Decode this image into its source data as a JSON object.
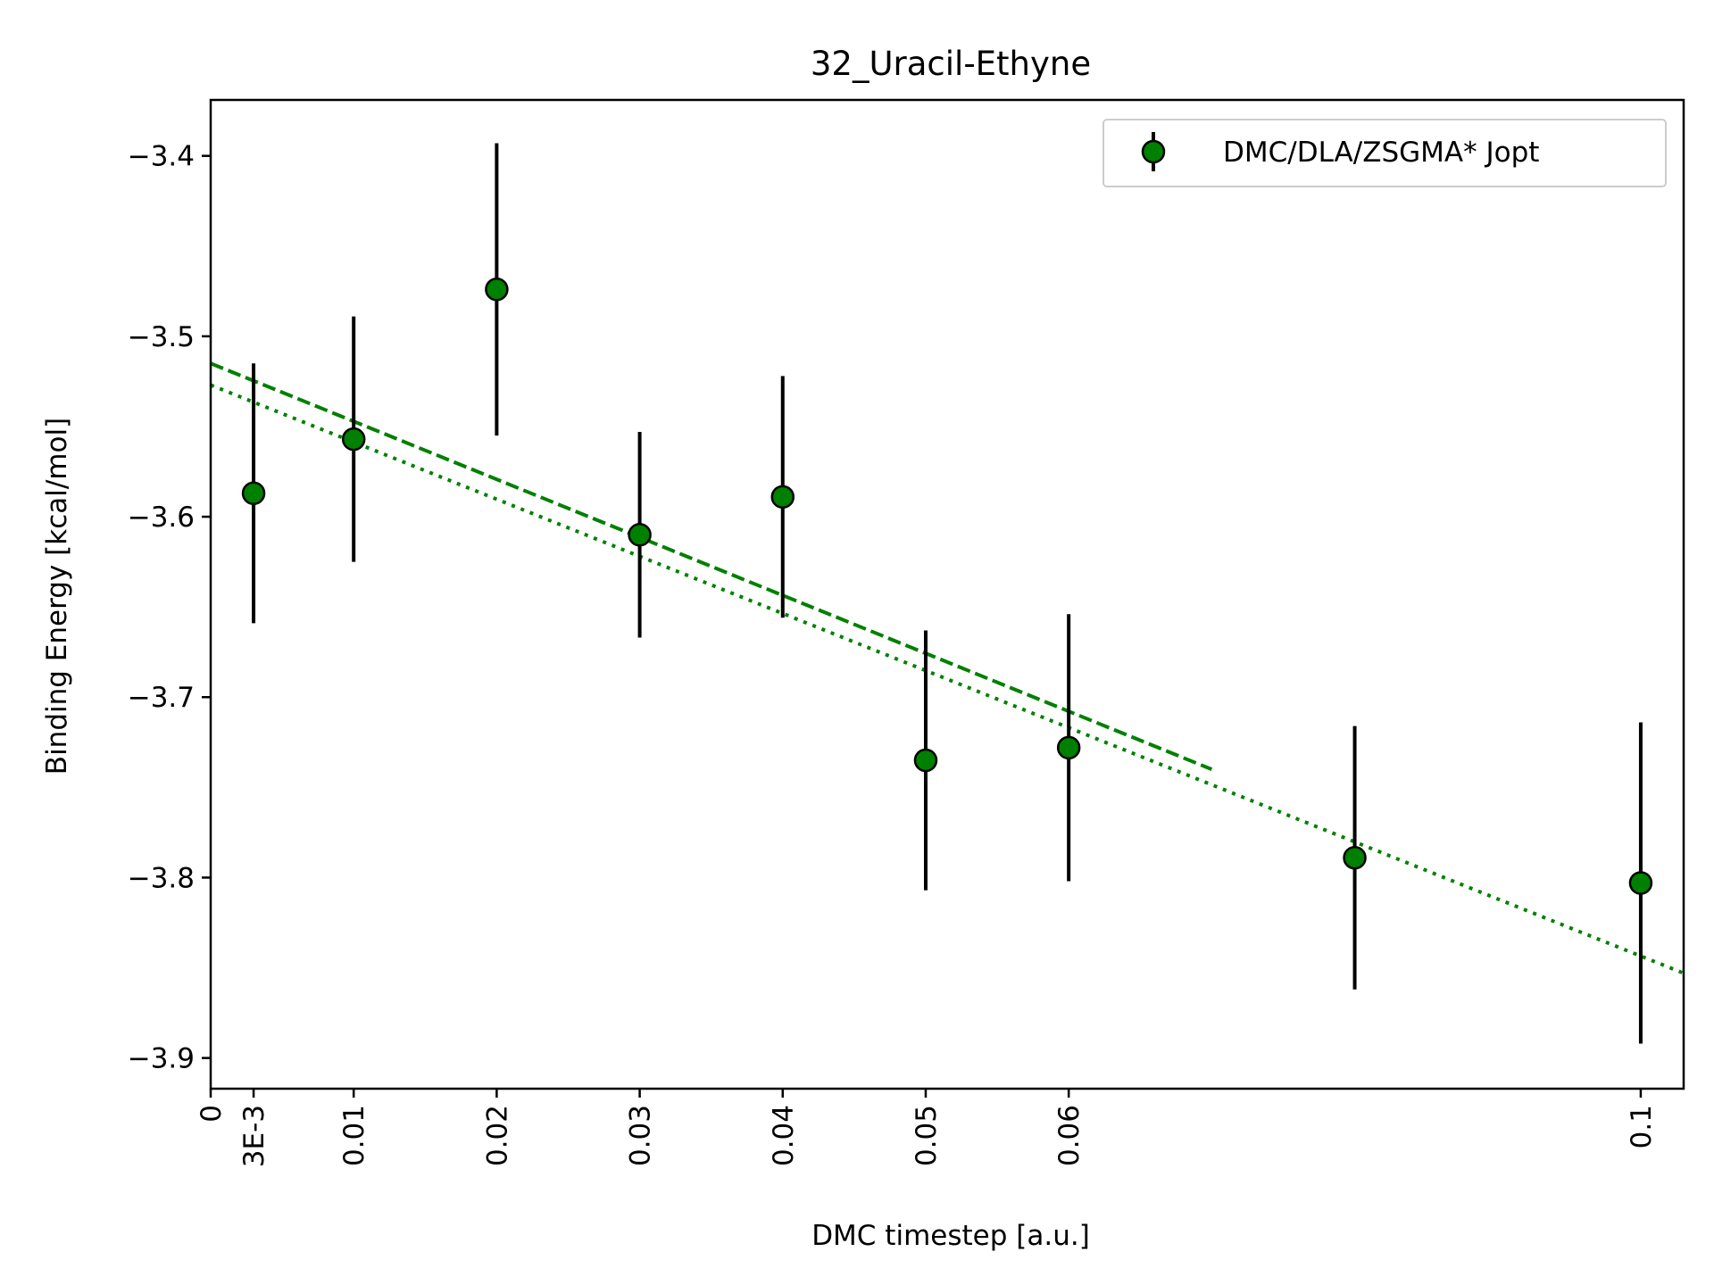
{
  "chart_data": {
    "type": "scatter",
    "title": "32_Uracil-Ethyne",
    "xlabel": "DMC timestep [a.u.]",
    "ylabel": "Binding Energy [kcal/mol]",
    "xlim": [
      0,
      0.103
    ],
    "ylim": [
      -3.917,
      -3.369
    ],
    "xticks": [
      {
        "value": 0,
        "label": "0"
      },
      {
        "value": 0.003,
        "label": "3E-3"
      },
      {
        "value": 0.01,
        "label": "0.01"
      },
      {
        "value": 0.02,
        "label": "0.02"
      },
      {
        "value": 0.03,
        "label": "0.03"
      },
      {
        "value": 0.04,
        "label": "0.04"
      },
      {
        "value": 0.05,
        "label": "0.05"
      },
      {
        "value": 0.06,
        "label": "0.06"
      },
      {
        "value": 0.1,
        "label": "0.1"
      }
    ],
    "yticks": [
      {
        "value": -3.4,
        "label": "−3.4"
      },
      {
        "value": -3.5,
        "label": "−3.5"
      },
      {
        "value": -3.6,
        "label": "−3.6"
      },
      {
        "value": -3.7,
        "label": "−3.7"
      },
      {
        "value": -3.8,
        "label": "−3.8"
      },
      {
        "value": -3.9,
        "label": "−3.9"
      }
    ],
    "grid": false,
    "legend_position": "top-right",
    "series": [
      {
        "name": "DMC/DLA/ZSGMA* Jopt",
        "marker_color": "#008000",
        "edge_color": "#000000",
        "errorbar_color": "#000000",
        "points": [
          {
            "x": 0.003,
            "y": -3.587,
            "err": 0.072
          },
          {
            "x": 0.01,
            "y": -3.557,
            "err": 0.068
          },
          {
            "x": 0.02,
            "y": -3.474,
            "err": 0.081
          },
          {
            "x": 0.03,
            "y": -3.61,
            "err": 0.057
          },
          {
            "x": 0.04,
            "y": -3.589,
            "err": 0.067
          },
          {
            "x": 0.05,
            "y": -3.735,
            "err": 0.072
          },
          {
            "x": 0.06,
            "y": -3.728,
            "err": 0.074
          },
          {
            "x": 0.08,
            "y": -3.789,
            "err": 0.073
          },
          {
            "x": 0.1,
            "y": -3.803,
            "err": 0.089
          }
        ]
      }
    ],
    "fit_lines": [
      {
        "style": "dashed",
        "color": "#008000",
        "x": [
          0,
          0.07
        ],
        "y": [
          -3.515,
          -3.74
        ]
      },
      {
        "style": "dotted",
        "color": "#008000",
        "x": [
          0,
          0.103
        ],
        "y": [
          -3.527,
          -3.853
        ]
      }
    ]
  }
}
